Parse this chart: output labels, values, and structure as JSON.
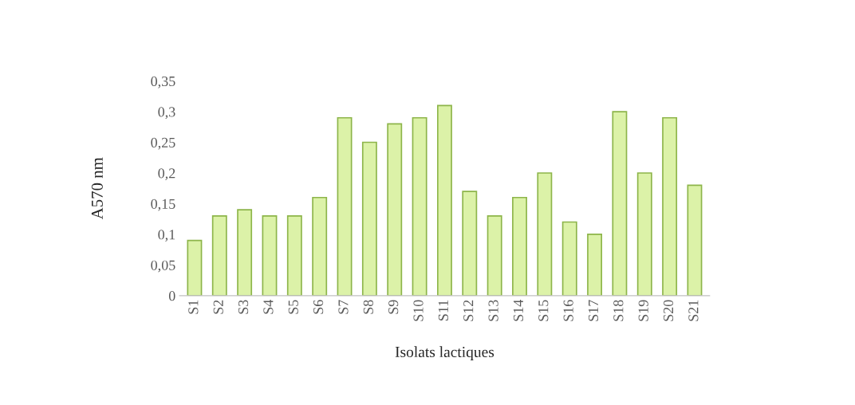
{
  "chart_data": {
    "type": "bar",
    "xlabel": "Isolats lactiques",
    "ylabel": "A570 nm",
    "categories": [
      "S1",
      "S2",
      "S3",
      "S4",
      "S5",
      "S6",
      "S7",
      "S8",
      "S9",
      "S10",
      "S11",
      "S12",
      "S13",
      "S14",
      "S15",
      "S16",
      "S17",
      "S18",
      "S19",
      "S20",
      "S21"
    ],
    "values": [
      0.09,
      0.13,
      0.14,
      0.13,
      0.13,
      0.16,
      0.29,
      0.25,
      0.28,
      0.29,
      0.31,
      0.17,
      0.13,
      0.16,
      0.2,
      0.12,
      0.1,
      0.3,
      0.2,
      0.29,
      0.18
    ],
    "color": "#dcf2a8",
    "ylim": [
      0,
      0.35
    ],
    "yticks": [
      {
        "value": 0,
        "label": "0"
      },
      {
        "value": 0.05,
        "label": "0,05"
      },
      {
        "value": 0.1,
        "label": "0,1"
      },
      {
        "value": 0.15,
        "label": "0,15"
      },
      {
        "value": 0.2,
        "label": "0,2"
      },
      {
        "value": 0.25,
        "label": "0,25"
      },
      {
        "value": 0.3,
        "label": "0,3"
      },
      {
        "value": 0.35,
        "label": "0,35"
      }
    ],
    "grid": false,
    "legend": false
  }
}
